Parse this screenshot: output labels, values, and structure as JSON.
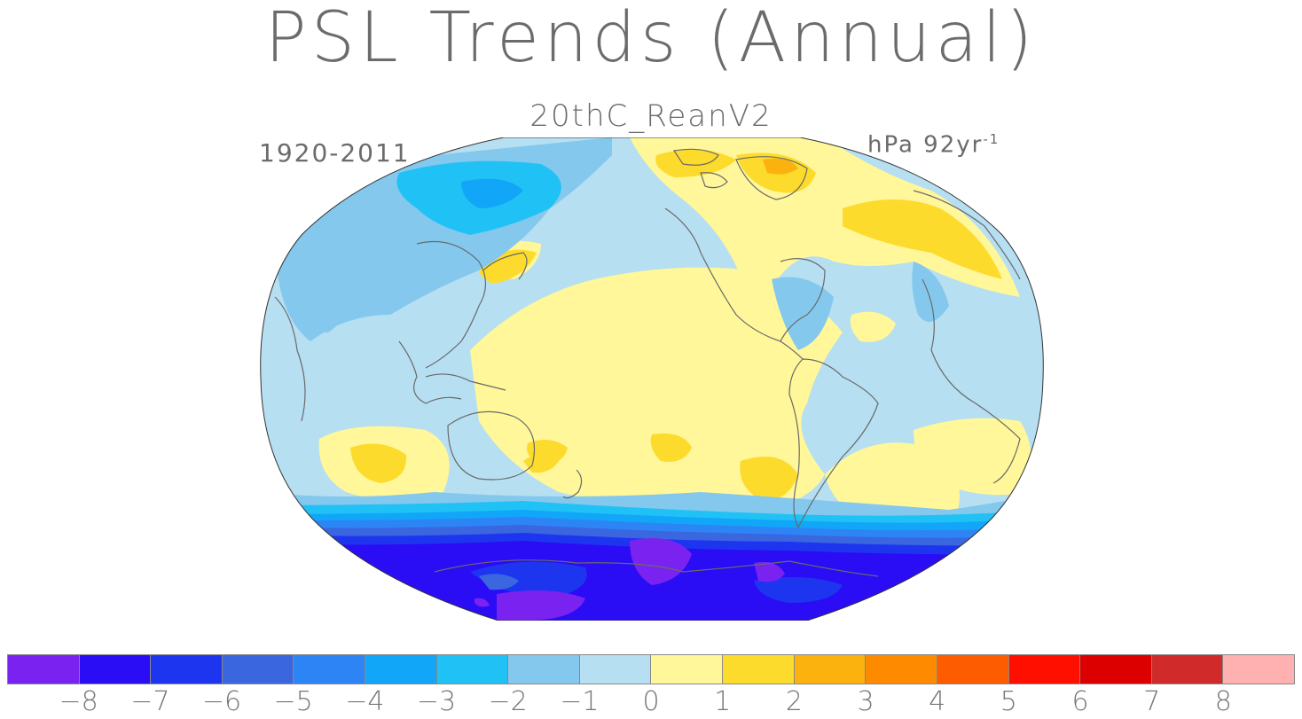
{
  "title": "PSL Trends (Annual)",
  "subtitle": "20thC_ReanV2",
  "period": "1920-2011",
  "units": {
    "base": "hPa 92yr",
    "exponent": "-1"
  },
  "map": {
    "projection": "Robinson, Pacific-centered",
    "variable": "Sea level pressure trend",
    "patterns": [
      {
        "region": "Antarctica / Southern Ocean",
        "level": "-8 to -5"
      },
      {
        "region": "Southern Ocean band",
        "level": "-5 to -2"
      },
      {
        "region": "North Pacific / Siberia",
        "level": "-4 to -1"
      },
      {
        "region": "Tropical Pacific",
        "level": "0 to 1"
      },
      {
        "region": "Greenland / Europe / Arctic Canada",
        "level": "1 to 3"
      },
      {
        "region": "Subtropical southern oceans",
        "level": "1 to 2"
      }
    ]
  },
  "colorbar": {
    "colors": [
      "#7a22f0",
      "#2a0cf5",
      "#1e35f0",
      "#3a66e0",
      "#2d85f5",
      "#11a6f8",
      "#20c2f5",
      "#84c8ee",
      "#b6dff2",
      "#fff799",
      "#fddb2d",
      "#fbb20f",
      "#fe8a00",
      "#fe5c00",
      "#fe0f00",
      "#dc0000",
      "#d02a2a",
      "#ffb0b0"
    ],
    "labels": [
      "−8",
      "−7",
      "−6",
      "−5",
      "−4",
      "−3",
      "−2",
      "−1",
      "0",
      "1",
      "2",
      "3",
      "4",
      "5",
      "6",
      "7",
      "8"
    ]
  }
}
